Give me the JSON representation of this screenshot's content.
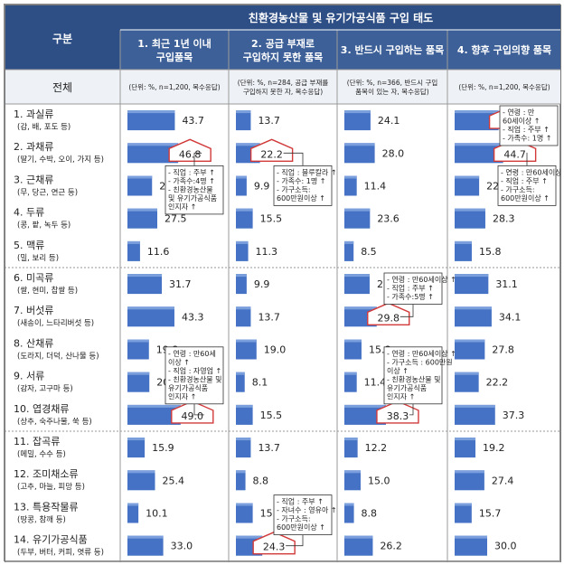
{
  "chart_data": {
    "type": "table",
    "title": "친환경농산물 및 유기가공식품 구입 태도",
    "row_header_label": "구분",
    "total_label": "전체",
    "columns": [
      {
        "title_lines": [
          "1. 최근 1년 이내",
          "구입품목"
        ],
        "note_lines": [
          "(단위: %, n=1,200, 복수응답)"
        ]
      },
      {
        "title_lines": [
          "2. 공급 부재로",
          "구입하지 못한 품목"
        ],
        "note_lines": [
          "(단위: %, n=284, 공급 부재를",
          "구입하지 못한 자, 복수응답)"
        ]
      },
      {
        "title_lines": [
          "3. 반드시 구입하는 품목"
        ],
        "note_lines": [
          "(단위: %, n=366, 반드시 구입",
          "품목이 있는 자, 복수응답)"
        ]
      },
      {
        "title_lines": [
          "4. 향후 구입의향 품목"
        ],
        "note_lines": [
          "(단위: %, n=1,200, 복수응답)"
        ]
      }
    ],
    "categories": [
      {
        "name": "1. 과실류",
        "sub": "(감, 배, 포도 등)"
      },
      {
        "name": "2. 과채류",
        "sub": "(딸기, 수박, 오이, 가지 등)"
      },
      {
        "name": "3. 근채류",
        "sub": "(무, 당근, 연근 등)"
      },
      {
        "name": "4. 두류",
        "sub": "(콩, 팥, 녹두 등)"
      },
      {
        "name": "5. 맥류",
        "sub": "(밀, 보리 등)"
      },
      {
        "name": "6. 미곡류",
        "sub": "(쌀, 현미, 찹쌀 등)"
      },
      {
        "name": "7. 버섯류",
        "sub": "(새송이, 느타리버섯 등)"
      },
      {
        "name": "8. 산채류",
        "sub": "(도라지, 더덕, 산나물 등)"
      },
      {
        "name": "9. 서류",
        "sub": "(감자, 고구마 등)"
      },
      {
        "name": "10. 엽경채류",
        "sub": "(상추, 숙주나물, 쑥 등)"
      },
      {
        "name": "11. 잡곡류",
        "sub": "(메밀, 수수 등)"
      },
      {
        "name": "12. 조미채소류",
        "sub": "(고추, 마늘, 피망 등)"
      },
      {
        "name": "13. 특용작물류",
        "sub": "(땅콩, 참깨 등)"
      },
      {
        "name": "14. 유기가공식품",
        "sub": "(두부, 버터, 커피, 엿류 등)"
      }
    ],
    "series": [
      {
        "values": [
          43.7,
          46.8,
          22.7,
          27.5,
          11.6,
          31.7,
          43.3,
          19.8,
          20.2,
          49.0,
          15.9,
          25.4,
          10.1,
          33.0
        ]
      },
      {
        "values": [
          13.7,
          22.2,
          9.9,
          15.5,
          11.3,
          9.9,
          13.7,
          19.0,
          8.1,
          15.5,
          13.7,
          8.8,
          15.5,
          24.3
        ]
      },
      {
        "values": [
          24.1,
          28.0,
          11.4,
          23.6,
          8.5,
          23.3,
          29.8,
          15.8,
          11.4,
          38.3,
          12.2,
          15.0,
          8.8,
          26.2
        ]
      },
      {
        "values": [
          40.5,
          44.7,
          22.6,
          28.3,
          15.8,
          31.1,
          34.1,
          27.8,
          22.2,
          37.3,
          19.2,
          27.4,
          15.7,
          30.0
        ]
      }
    ],
    "highlights": [
      {
        "col": 0,
        "row": 1
      },
      {
        "col": 0,
        "row": 9
      },
      {
        "col": 1,
        "row": 1
      },
      {
        "col": 1,
        "row": 13
      },
      {
        "col": 2,
        "row": 6
      },
      {
        "col": 2,
        "row": 9
      },
      {
        "col": 3,
        "row": 0
      },
      {
        "col": 3,
        "row": 1
      }
    ],
    "annotations": [
      {
        "col": 0,
        "row": 1,
        "lines": [
          "- 직업 : 주부 ↑",
          "- 가족수:4명 ↑",
          "- 친환경농산물",
          "및 유기가공식품",
          "인지자 ↑"
        ]
      },
      {
        "col": 0,
        "row": 9,
        "lines": [
          "- 연령 : 만60세",
          "이상 ↑",
          "- 직업 : 자영업 ↑",
          "- 친환경농산물 및",
          "유기가공식품",
          "인지자 ↑"
        ]
      },
      {
        "col": 1,
        "row": 1,
        "lines": [
          "- 직업 : 블루칼라 ↑",
          "- 가족수: 1명 ↑",
          "- 가구소득:",
          "600만원이상 ↑"
        ]
      },
      {
        "col": 1,
        "row": 13,
        "lines": [
          "- 직업 : 주부 ↑",
          "- 자녀수 : 영유아 ↑",
          "- 가구소득:",
          "600만원이상 ↑"
        ]
      },
      {
        "col": 2,
        "row": 6,
        "lines": [
          "- 연령 : 만60세이상 ↑",
          "- 직업 : 주부 ↑",
          "- 가족수:5명 ↑"
        ]
      },
      {
        "col": 2,
        "row": 9,
        "lines": [
          "- 연령 : 만60세이상 ↑",
          "- 가구소득 : 600만원",
          "이상 ↑",
          "- 친환경농산물 및",
          "유기가공식품",
          "인지자 ↑"
        ]
      },
      {
        "col": 3,
        "row": 0,
        "lines": [
          "- 연령 : 만",
          "60세이상 ↑",
          "- 직업 : 주부 ↑",
          "- 가족수: 1명 ↑"
        ]
      },
      {
        "col": 3,
        "row": 1,
        "lines": [
          "- 연령 : 만60세이상 ↑",
          "- 직업 : 주부 ↑",
          "- 가구소득:",
          "600만원이상 ↑"
        ]
      }
    ],
    "xlim": [
      0,
      100
    ]
  },
  "colors": {
    "header_top": "#2e4f86",
    "header_sub": "#3d6098",
    "bar": "#4572c4",
    "highlight_arrow": "#d23a3a"
  }
}
